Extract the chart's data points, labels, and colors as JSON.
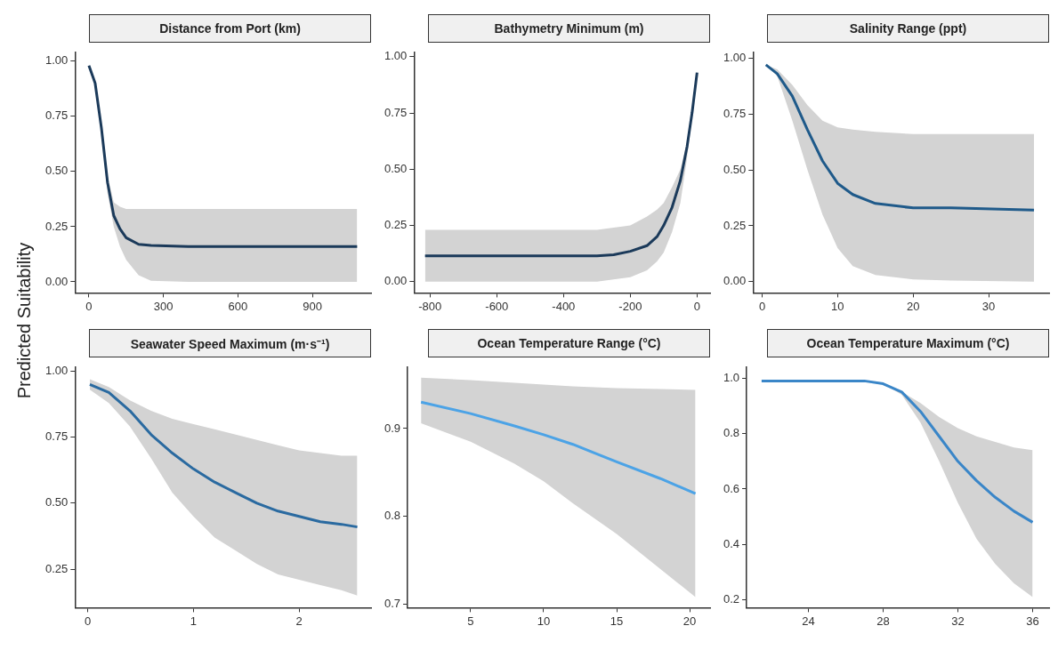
{
  "chart_data": [
    {
      "type": "line",
      "title": "Distance from Port (km)",
      "ylabel": "Predicted Suitability",
      "xlim": [
        -56,
        1136
      ],
      "xticks": [
        0,
        300,
        600,
        900
      ],
      "ylim": [
        -0.05,
        1.04
      ],
      "yticks": [
        {
          "value": 0,
          "label": "0.00"
        },
        {
          "value": 0.25,
          "label": "0.25"
        },
        {
          "value": 0.5,
          "label": "0.50"
        },
        {
          "value": 0.75,
          "label": "0.75"
        },
        {
          "value": 1,
          "label": "1.00"
        }
      ],
      "series": [
        {
          "color": "#1b3a5a",
          "x": [
            0,
            25,
            50,
            75,
            100,
            125,
            150,
            200,
            250,
            400,
            1080
          ],
          "values": [
            0.98,
            0.9,
            0.7,
            0.45,
            0.3,
            0.24,
            0.2,
            0.17,
            0.165,
            0.16,
            0.16
          ],
          "lower": [
            0.98,
            0.89,
            0.68,
            0.4,
            0.25,
            0.16,
            0.1,
            0.03,
            0.005,
            0,
            0
          ],
          "upper": [
            0.98,
            0.91,
            0.72,
            0.48,
            0.36,
            0.34,
            0.33,
            0.33,
            0.33,
            0.33,
            0.33
          ]
        }
      ]
    },
    {
      "type": "line",
      "title": "Bathymetry Minimum (m)",
      "xlim": [
        -848,
        39
      ],
      "xticks": [
        -800,
        -600,
        -400,
        -200,
        0
      ],
      "ylim": [
        -0.05,
        1.02
      ],
      "yticks": [
        {
          "value": 0,
          "label": "0.00"
        },
        {
          "value": 0.25,
          "label": "0.25"
        },
        {
          "value": 0.5,
          "label": "0.50"
        },
        {
          "value": 0.75,
          "label": "0.75"
        },
        {
          "value": 1,
          "label": "1.00"
        }
      ],
      "series": [
        {
          "color": "#1b3a5a",
          "x": [
            -815,
            -300,
            -250,
            -200,
            -150,
            -120,
            -100,
            -75,
            -50,
            -30,
            -15,
            0
          ],
          "values": [
            0.115,
            0.115,
            0.12,
            0.135,
            0.16,
            0.2,
            0.25,
            0.33,
            0.45,
            0.6,
            0.75,
            0.93
          ],
          "lower": [
            0,
            0,
            0.01,
            0.02,
            0.05,
            0.09,
            0.13,
            0.22,
            0.35,
            0.55,
            0.74,
            0.93
          ],
          "upper": [
            0.23,
            0.23,
            0.24,
            0.25,
            0.29,
            0.32,
            0.35,
            0.42,
            0.5,
            0.62,
            0.76,
            0.93
          ]
        }
      ]
    },
    {
      "type": "line",
      "title": "Salinity Range (ppt)",
      "xlim": [
        -1.2,
        38
      ],
      "xticks": [
        0,
        10,
        20,
        30
      ],
      "ylim": [
        -0.05,
        1.026
      ],
      "yticks": [
        {
          "value": 0,
          "label": "0.00"
        },
        {
          "value": 0.25,
          "label": "0.25"
        },
        {
          "value": 0.5,
          "label": "0.50"
        },
        {
          "value": 0.75,
          "label": "0.75"
        },
        {
          "value": 1,
          "label": "1.00"
        }
      ],
      "series": [
        {
          "color": "#1f5a8a",
          "x": [
            0.5,
            2,
            4,
            6,
            8,
            10,
            12,
            15,
            20,
            25,
            36
          ],
          "values": [
            0.97,
            0.93,
            0.83,
            0.68,
            0.54,
            0.44,
            0.39,
            0.35,
            0.33,
            0.33,
            0.32
          ],
          "lower": [
            0.97,
            0.92,
            0.72,
            0.5,
            0.3,
            0.15,
            0.07,
            0.03,
            0.01,
            0.005,
            0
          ],
          "upper": [
            0.97,
            0.95,
            0.88,
            0.79,
            0.72,
            0.69,
            0.68,
            0.67,
            0.66,
            0.66,
            0.66
          ]
        }
      ]
    },
    {
      "type": "line",
      "title": "Seawater Speed Maximum (m·s⁻¹)",
      "xlim": [
        -0.12,
        2.68
      ],
      "xticks": [
        0,
        1,
        2
      ],
      "ylim": [
        0.104,
        1.016
      ],
      "yticks": [
        {
          "value": 0.25,
          "label": "0.25"
        },
        {
          "value": 0.5,
          "label": "0.50"
        },
        {
          "value": 0.75,
          "label": "0.75"
        },
        {
          "value": 1,
          "label": "1.00"
        }
      ],
      "series": [
        {
          "color": "#2a6aa0",
          "x": [
            0.02,
            0.2,
            0.4,
            0.6,
            0.8,
            1,
            1.2,
            1.4,
            1.6,
            1.8,
            2,
            2.2,
            2.4,
            2.55
          ],
          "values": [
            0.95,
            0.92,
            0.85,
            0.76,
            0.69,
            0.63,
            0.58,
            0.54,
            0.5,
            0.47,
            0.45,
            0.43,
            0.42,
            0.41
          ],
          "lower": [
            0.93,
            0.88,
            0.79,
            0.67,
            0.54,
            0.45,
            0.37,
            0.32,
            0.27,
            0.23,
            0.21,
            0.19,
            0.17,
            0.15
          ],
          "upper": [
            0.97,
            0.94,
            0.89,
            0.85,
            0.82,
            0.8,
            0.78,
            0.76,
            0.74,
            0.72,
            0.7,
            0.69,
            0.68,
            0.68
          ]
        }
      ]
    },
    {
      "type": "line",
      "title": "Ocean Temperature Range (°C)",
      "xlim": [
        0.68,
        21.4
      ],
      "xticks": [
        5,
        10,
        15,
        20
      ],
      "ylim": [
        0.696,
        0.97
      ],
      "yticks": [
        {
          "value": 0.7,
          "label": "0.7"
        },
        {
          "value": 0.8,
          "label": "0.8"
        },
        {
          "value": 0.9,
          "label": "0.9"
        }
      ],
      "series": [
        {
          "color": "#4ca3e6",
          "x": [
            1.6,
            5,
            8,
            10,
            12,
            15,
            18,
            20.4
          ],
          "values": [
            0.93,
            0.917,
            0.903,
            0.893,
            0.882,
            0.862,
            0.843,
            0.826
          ],
          "lower": [
            0.906,
            0.885,
            0.86,
            0.84,
            0.815,
            0.78,
            0.74,
            0.708
          ],
          "upper": [
            0.958,
            0.955,
            0.952,
            0.95,
            0.948,
            0.946,
            0.945,
            0.944
          ]
        }
      ]
    },
    {
      "type": "line",
      "title": "Ocean Temperature Maximum (°C)",
      "xlim": [
        20.7,
        36.88
      ],
      "xticks": [
        24,
        28,
        32,
        36
      ],
      "ylim": [
        0.172,
        1.04
      ],
      "yticks": [
        {
          "value": 0.2,
          "label": "0.2"
        },
        {
          "value": 0.4,
          "label": "0.4"
        },
        {
          "value": 0.6,
          "label": "0.6"
        },
        {
          "value": 0.8,
          "label": "0.8"
        },
        {
          "value": 1,
          "label": "1.0"
        }
      ],
      "series": [
        {
          "color": "#3a86c8",
          "x": [
            21.5,
            27,
            28,
            29,
            30,
            31,
            32,
            33,
            34,
            35,
            36
          ],
          "values": [
            0.99,
            0.99,
            0.98,
            0.95,
            0.88,
            0.79,
            0.7,
            0.63,
            0.57,
            0.52,
            0.48
          ],
          "lower": [
            null,
            null,
            0.98,
            0.94,
            0.84,
            0.7,
            0.55,
            0.42,
            0.33,
            0.26,
            0.21
          ],
          "upper": [
            null,
            null,
            0.98,
            0.95,
            0.91,
            0.86,
            0.82,
            0.79,
            0.77,
            0.75,
            0.74
          ]
        }
      ]
    }
  ]
}
